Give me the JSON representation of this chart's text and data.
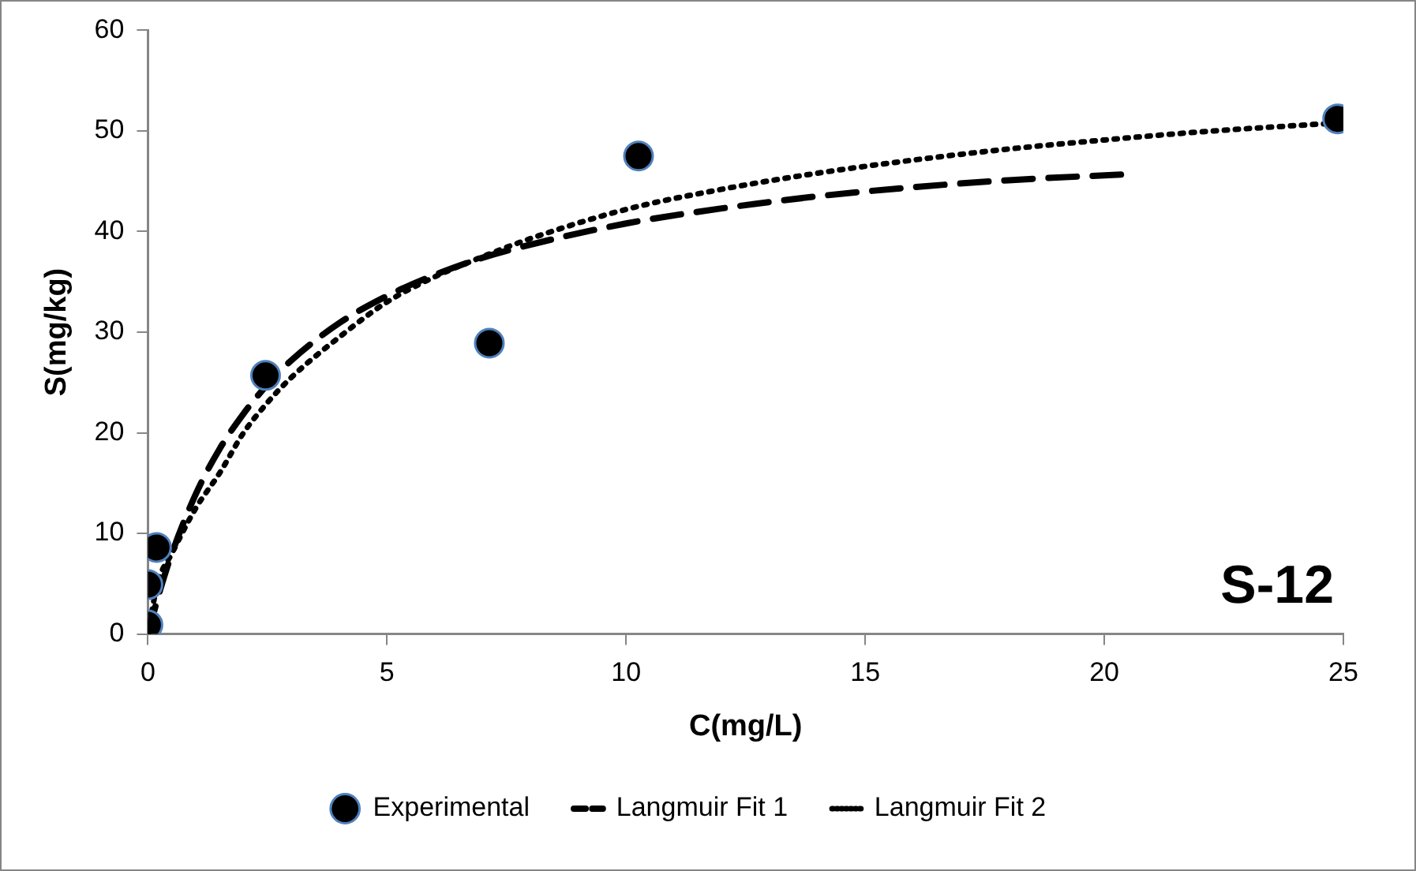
{
  "chart_data": {
    "type": "scatter",
    "xlabel": "C(mg/L)",
    "ylabel": "S(mg/kg)",
    "annotations": [
      "S-12"
    ],
    "xlim": [
      0,
      25
    ],
    "xticks": [
      0,
      5,
      10,
      15,
      20,
      25
    ],
    "ylim": [
      0,
      60
    ],
    "yticks": [
      0,
      10,
      20,
      30,
      40,
      50,
      60
    ],
    "grid": false,
    "legend": "bottom",
    "series": [
      {
        "name": "Experimental",
        "marker": "circle",
        "color": "#000000",
        "x": [
          0,
          0,
          0.18,
          2.46,
          7.14,
          10.26,
          24.88
        ],
        "values": [
          0.9,
          4.9,
          8.6,
          25.7,
          28.9,
          47.5,
          51.2
        ]
      },
      {
        "name": "Langmuir Fit 1",
        "type": "line",
        "line_style": "dashed",
        "marker": "none",
        "color": "#000000",
        "x": [
          0,
          0.25,
          0.5,
          1,
          1.5,
          2,
          2.5,
          3,
          4,
          5,
          6,
          7,
          8,
          10,
          12,
          14,
          16,
          18,
          20.5
        ],
        "values": [
          0,
          4.3,
          8,
          13.9,
          18.4,
          21.9,
          24.8,
          27.2,
          30.9,
          33.6,
          35.7,
          37.4,
          38.7,
          40.8,
          42.3,
          43.5,
          44.4,
          45.1,
          45.7
        ]
      },
      {
        "name": "Langmuir Fit 2",
        "type": "line",
        "line_style": "dotted",
        "marker": "none",
        "color": "#000000",
        "x": [
          0,
          0.2,
          0.5,
          1,
          1.5,
          2,
          2.5,
          3,
          4,
          5,
          6,
          7,
          8,
          10,
          12,
          14,
          16,
          18,
          20,
          22,
          24.9
        ],
        "values": [
          0,
          5,
          8,
          12.5,
          16,
          20,
          23,
          25.5,
          29.5,
          33,
          35.5,
          37.5,
          39.3,
          42.2,
          44.2,
          45.8,
          47.1,
          48.2,
          49.1,
          49.9,
          50.8
        ]
      }
    ]
  }
}
